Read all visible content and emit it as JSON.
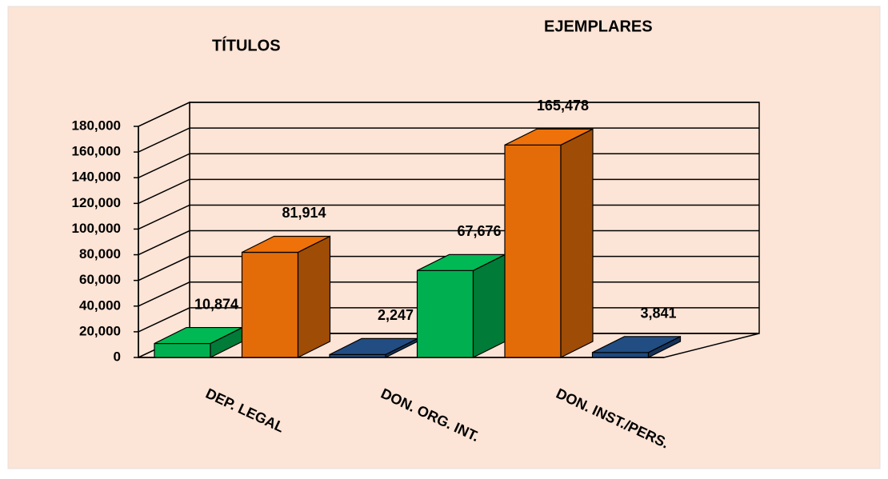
{
  "chart_data": {
    "type": "bar3d",
    "annotations": [
      "TÍTULOS",
      "EJEMPLARES"
    ],
    "categories": [
      "DEP. LEGAL",
      null,
      "DON. ORG. INT.",
      null,
      "DON. INST./PERS.",
      null
    ],
    "values": [
      10874,
      81914,
      2247,
      67676,
      165478,
      3841
    ],
    "value_labels": [
      "10,874",
      "81,914",
      "2,247",
      "67,676",
      "165,478",
      "3,841"
    ],
    "colors": [
      "#00b050",
      "#e36c09",
      "#1f497d",
      "#00b050",
      "#e36c09",
      "#1f497d"
    ],
    "ylim": [
      0,
      180000
    ],
    "yticks": [
      0,
      {
        "value": 20000,
        "label": "20,000"
      },
      {
        "value": 40000,
        "label": "40,000"
      },
      {
        "value": 60000,
        "label": "60,000"
      },
      {
        "value": 80000,
        "label": "80,000"
      },
      {
        "value": 100000,
        "label": "100,000"
      },
      {
        "value": 120000,
        "label": "120,000"
      },
      {
        "value": 140000,
        "label": "140,000"
      },
      {
        "value": 160000,
        "label": "160,000"
      },
      {
        "value": 180000,
        "label": "180,000"
      }
    ],
    "grid": true
  }
}
